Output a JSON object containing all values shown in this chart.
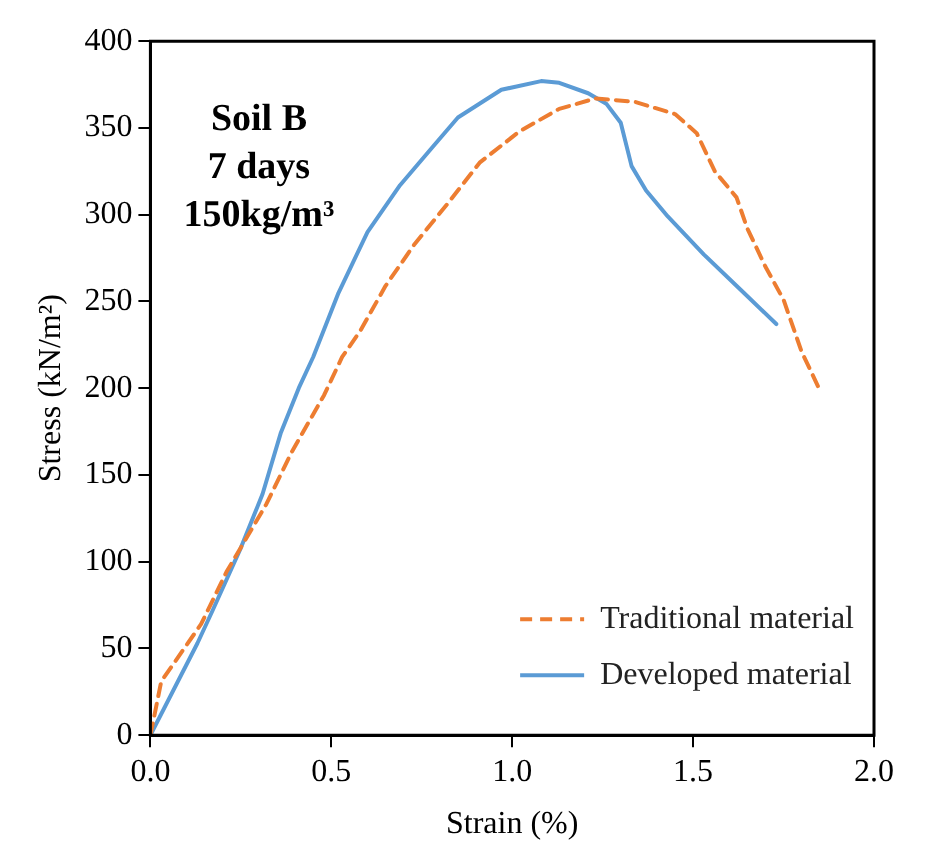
{
  "chart_data": {
    "type": "line",
    "xlabel": "Strain (%)",
    "ylabel": "Stress (kN/m²)",
    "annotations": [
      "Soil B\n7 days\n150kg/m³"
    ],
    "xlim": [
      0,
      2
    ],
    "xticks": [
      {
        "value": 0,
        "label": "0.0"
      },
      {
        "value": 0.5,
        "label": "0.5"
      },
      {
        "value": 1,
        "label": "1.0"
      },
      {
        "value": 1.5,
        "label": "1.5"
      },
      {
        "value": 2,
        "label": "2.0"
      }
    ],
    "ylim": [
      0,
      400
    ],
    "yticks": [
      0,
      50,
      100,
      150,
      200,
      250,
      300,
      350,
      400
    ],
    "grid": false,
    "legend": "bottom right",
    "marker": "none",
    "series": [
      {
        "name": "Traditional material",
        "color": "#ed7d31",
        "line_style": "dashed",
        "x": [
          0,
          0.03,
          0.14,
          0.21,
          0.32,
          0.39,
          0.48,
          0.53,
          0.58,
          0.65,
          0.73,
          0.82,
          0.91,
          1.02,
          1.13,
          1.23,
          1.34,
          1.45,
          1.51,
          1.56,
          1.62,
          1.65,
          1.7,
          1.75,
          1.8,
          1.85
        ],
        "values": [
          0,
          31,
          64,
          94,
          133,
          163,
          196,
          218,
          233,
          259,
          283,
          306,
          330,
          348,
          361,
          367,
          365,
          358,
          347,
          325,
          310,
          292,
          270,
          251,
          221,
          199
        ]
      },
      {
        "name": "Developed material",
        "color": "#5b9bd5",
        "line_style": "solid",
        "x": [
          0,
          0.13,
          0.17,
          0.25,
          0.31,
          0.36,
          0.41,
          0.45,
          0.52,
          0.6,
          0.69,
          0.78,
          0.85,
          0.97,
          1.08,
          1.13,
          1.21,
          1.26,
          1.3,
          1.33,
          1.37,
          1.43,
          1.53,
          1.64,
          1.73
        ],
        "values": [
          0,
          53,
          71,
          108,
          139,
          174,
          200,
          218,
          255,
          290,
          317,
          339,
          356,
          372,
          377,
          376,
          370,
          364,
          353,
          328,
          314,
          299,
          277,
          255,
          237
        ]
      }
    ]
  }
}
